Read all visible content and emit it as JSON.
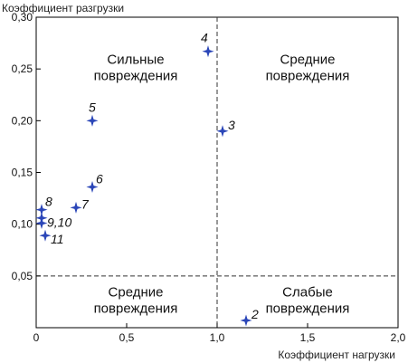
{
  "chart_data": {
    "type": "scatter",
    "xlabel": "Коэффициент нагрузки",
    "ylabel": "Коэффициент разгрузки",
    "xlim": [
      0,
      2.0
    ],
    "ylim": [
      0,
      0.3
    ],
    "x_ticks": [
      {
        "value": 0,
        "label": "0"
      },
      {
        "value": 0.5,
        "label": "0,5"
      },
      {
        "value": 1.0,
        "label": "1,0"
      },
      {
        "value": 1.5,
        "label": "1,5"
      },
      {
        "value": 2.0,
        "label": "2,0"
      }
    ],
    "y_ticks": [
      {
        "value": 0.05,
        "label": "0,05"
      },
      {
        "value": 0.1,
        "label": "0,10"
      },
      {
        "value": 0.15,
        "label": "0,15"
      },
      {
        "value": 0.2,
        "label": "0,20"
      },
      {
        "value": 0.25,
        "label": "0,25"
      },
      {
        "value": 0.3,
        "label": "0,30"
      }
    ],
    "threshold_lines": {
      "x": 1.0,
      "y": 0.05
    },
    "points": [
      {
        "label": "2",
        "x": 1.16,
        "y": 0.007
      },
      {
        "label": "3",
        "x": 1.03,
        "y": 0.19
      },
      {
        "label": "4",
        "x": 0.95,
        "y": 0.267
      },
      {
        "label": "5",
        "x": 0.31,
        "y": 0.2
      },
      {
        "label": "6",
        "x": 0.31,
        "y": 0.136
      },
      {
        "label": "7",
        "x": 0.22,
        "y": 0.116
      },
      {
        "label": "8",
        "x": 0.03,
        "y": 0.114
      },
      {
        "label": "",
        "x": 0.03,
        "y": 0.106
      },
      {
        "label": "9,10",
        "x": 0.03,
        "y": 0.101
      },
      {
        "label": "11",
        "x": 0.05,
        "y": 0.089
      }
    ],
    "regions": [
      {
        "lines": [
          "Сильные",
          "повреждения"
        ]
      },
      {
        "lines": [
          "Средние",
          "повреждения"
        ]
      },
      {
        "lines": [
          "Средние",
          "повреждения"
        ]
      },
      {
        "lines": [
          "Слабые",
          "повреждения"
        ]
      }
    ],
    "colors": {
      "marker": "#2b46b8",
      "axis": "#000000",
      "text": "#111111"
    },
    "marker": "four-point-star",
    "grid": false,
    "legend": "none"
  }
}
